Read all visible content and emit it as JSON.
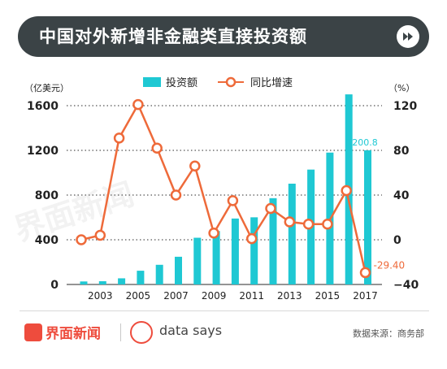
{
  "header": {
    "title": "中国对外新增非金融类直接投资额"
  },
  "chart_data": {
    "type": "bar+line",
    "title": "中国对外新增非金融类直接投资额",
    "left_unit": "（亿美元）",
    "right_unit": "（%）",
    "legend": [
      "投资额",
      "同比增速"
    ],
    "categories": [
      "2002",
      "2003",
      "2004",
      "2005",
      "2006",
      "2007",
      "2008",
      "2009",
      "2010",
      "2011",
      "2012",
      "2013",
      "2014",
      "2015",
      "2016",
      "2017"
    ],
    "x_tick_labels": [
      "2003",
      "2005",
      "2007",
      "2009",
      "2011",
      "2013",
      "2015",
      "2017"
    ],
    "y_left": {
      "ylim": [
        0,
        1600
      ],
      "ticks": [
        0,
        400,
        800,
        1200,
        1600
      ]
    },
    "y_right": {
      "ylim": [
        -40,
        120
      ],
      "ticks": [
        -40,
        0,
        40,
        80,
        120
      ]
    },
    "series": [
      {
        "name": "投资额",
        "type": "bar",
        "axis": "left",
        "values": [
          27,
          29,
          55,
          123,
          176,
          248,
          418,
          478,
          590,
          601,
          772,
          902,
          1028,
          1180,
          1701,
          1200.8
        ]
      },
      {
        "name": "同比增速",
        "type": "line",
        "axis": "right",
        "values": [
          0,
          4,
          91,
          121,
          82,
          40,
          66,
          6,
          35,
          1,
          28,
          16,
          14,
          14,
          44,
          -29.4
        ]
      }
    ],
    "annotations": [
      {
        "label": "1200.8",
        "category": "2017",
        "series": "投资额"
      },
      {
        "label": "-29.40",
        "category": "2017",
        "series": "同比增速"
      }
    ],
    "colors": {
      "bar": "#1fc8d3",
      "line": "#ee6a3a",
      "grid": "#555555"
    }
  },
  "footer": {
    "logo_text": "界面新闻",
    "brand_text": "data says",
    "source": "数据来源：商务部"
  },
  "watermark": "界面新闻"
}
